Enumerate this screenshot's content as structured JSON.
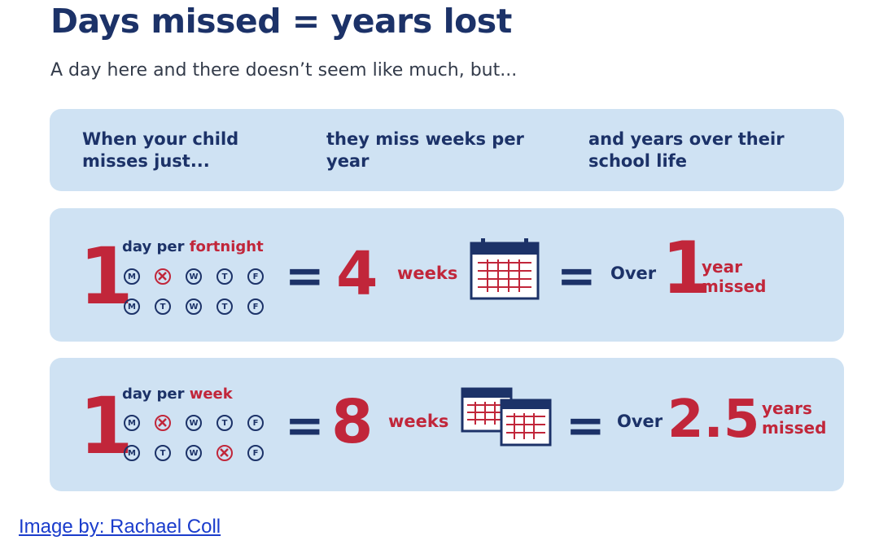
{
  "title": "Days missed = years lost",
  "subtitle": "A day here and there doesn’t seem like much, but...",
  "header": {
    "col1": "When your child misses just...",
    "col2": "they miss weeks per year",
    "col3": "and years over their school life"
  },
  "rows": [
    {
      "count": "1",
      "freq_prefix": "day per ",
      "freq_unit": "fortnight",
      "week1": [
        "M",
        "T",
        "W",
        "T",
        "F"
      ],
      "week1_missed": [
        false,
        true,
        false,
        false,
        false
      ],
      "week2": [
        "M",
        "T",
        "W",
        "T",
        "F"
      ],
      "week2_missed": [
        false,
        false,
        false,
        false,
        false
      ],
      "equals": "=",
      "weeks_value": "4",
      "weeks_label": "weeks",
      "equals2": "=",
      "over": "Over",
      "years_value": "1",
      "years_label": "year missed",
      "calendar_icon": "calendar-icon"
    },
    {
      "count": "1",
      "freq_prefix": "day per ",
      "freq_unit": "week",
      "week1": [
        "M",
        "T",
        "W",
        "T",
        "F"
      ],
      "week1_missed": [
        false,
        true,
        false,
        false,
        false
      ],
      "week2": [
        "M",
        "T",
        "W",
        "T",
        "F"
      ],
      "week2_missed": [
        false,
        false,
        false,
        true,
        false
      ],
      "equals": "=",
      "weeks_value": "8",
      "weeks_label": "weeks",
      "equals2": "=",
      "over": "Over",
      "years_value": "2.5",
      "years_label": "years missed",
      "calendar_icon": "double-calendar-icon"
    }
  ],
  "credit": "Image by: Rachael Coll",
  "colors": {
    "navy": "#1c3268",
    "red": "#c1263a",
    "panel": "#cfe2f3",
    "link": "#1a3ccc"
  }
}
